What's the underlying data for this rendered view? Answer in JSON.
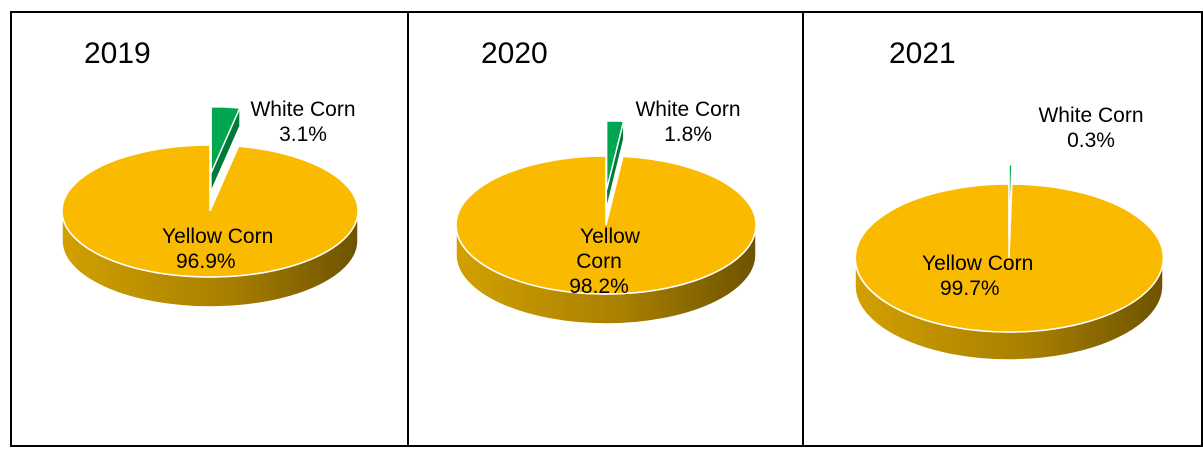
{
  "colors": {
    "yellow": "#F9BA00",
    "green": "#00A650",
    "border": "#000000"
  },
  "chart_data": [
    {
      "type": "pie",
      "title": "2019",
      "categories": [
        "Yellow Corn",
        "White Corn"
      ],
      "values": [
        96.9,
        3.1
      ],
      "labels": {
        "yellow_name": "Yellow Corn",
        "yellow_value": "96.9%",
        "white_name": "White Corn",
        "white_value": "3.1%"
      }
    },
    {
      "type": "pie",
      "title": "2020",
      "categories": [
        "Yellow Corn",
        "White Corn"
      ],
      "values": [
        98.2,
        1.8
      ],
      "labels": {
        "yellow_name_1": "Yellow",
        "yellow_name_2": "Corn",
        "yellow_value": "98.2%",
        "white_name": "White Corn",
        "white_value": "1.8%"
      }
    },
    {
      "type": "pie",
      "title": "2021",
      "categories": [
        "Yellow Corn",
        "White Corn"
      ],
      "values": [
        99.7,
        0.3
      ],
      "labels": {
        "yellow_name": "Yellow Corn",
        "yellow_value": "99.7%",
        "white_name": "White Corn",
        "white_value": "0.3%"
      }
    }
  ]
}
